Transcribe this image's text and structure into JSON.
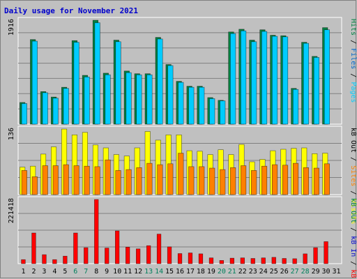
{
  "chart_data": {
    "type": "bar",
    "title": "Daily usage for November 2021",
    "categories": [
      "1",
      "2",
      "3",
      "4",
      "5",
      "6",
      "7",
      "8",
      "9",
      "10",
      "11",
      "12",
      "13",
      "14",
      "15",
      "16",
      "17",
      "18",
      "19",
      "20",
      "21",
      "22",
      "23",
      "24",
      "25",
      "26",
      "27",
      "28",
      "29",
      "30",
      "31"
    ],
    "weekend_days": [
      "6",
      "7",
      "13",
      "14",
      "20",
      "21",
      "27",
      "28"
    ],
    "panels": [
      {
        "id": "top",
        "max_label": "1916",
        "ymax": 1916,
        "legend": [
          {
            "text": "Pages",
            "color": "#00ccff"
          },
          {
            "text": " / ",
            "color": "#000000"
          },
          {
            "text": "Files",
            "color": "#0066cc"
          },
          {
            "text": " / ",
            "color": "#000000"
          },
          {
            "text": "Hits",
            "color": "#008040"
          }
        ],
        "series": [
          {
            "name": "Hits",
            "color": "#008040",
            "values": [
              400,
              1560,
              600,
              500,
              680,
              1540,
              900,
              1916,
              940,
              1550,
              980,
              930,
              930,
              1600,
              1100,
              790,
              700,
              700,
              490,
              440,
              1700,
              1750,
              1550,
              1740,
              1640,
              1630,
              660,
              1510,
              1250,
              1780,
              0
            ]
          },
          {
            "name": "Pages",
            "color": "#00ccff",
            "values": [
              380,
              1530,
              580,
              480,
              660,
              1510,
              870,
              1870,
              910,
              1520,
              950,
              910,
              910,
              1570,
              1080,
              770,
              680,
              680,
              470,
              430,
              1670,
              1720,
              1520,
              1710,
              1620,
              1610,
              640,
              1490,
              1230,
              1740,
              0
            ]
          }
        ]
      },
      {
        "id": "middle",
        "max_label": "136",
        "ymax": 136,
        "legend": [
          {
            "text": "Visits",
            "color": "#ffff00"
          },
          {
            "text": " / ",
            "color": "#000000"
          },
          {
            "text": "Sites",
            "color": "#ff8000"
          },
          {
            "text": " / ",
            "color": "#000000"
          },
          {
            "text": "kB Out",
            "color": "#000000"
          }
        ],
        "series": [
          {
            "name": "Visits",
            "color": "#ffff00",
            "values": [
              57,
              59,
              84,
              99,
              136,
              124,
              129,
              103,
              97,
              83,
              80,
              97,
              131,
              113,
              124,
              124,
              91,
              90,
              83,
              93,
              83,
              104,
              68,
              73,
              91,
              94,
              96,
              97,
              85,
              86,
              0
            ]
          },
          {
            "name": "Sites",
            "color": "#ff8000",
            "values": [
              50,
              37,
              60,
              60,
              62,
              60,
              59,
              58,
              72,
              50,
              52,
              56,
              65,
              62,
              64,
              86,
              58,
              58,
              55,
              52,
              56,
              60,
              50,
              59,
              62,
              61,
              65,
              56,
              55,
              64,
              0
            ]
          }
        ]
      },
      {
        "id": "bottom",
        "max_label": "221418",
        "ymax": 221418,
        "legend": [
          {
            "text": "kB F",
            "color": "#ff0000"
          },
          {
            "text": " / ",
            "color": "#000000"
          },
          {
            "text": "kB In",
            "color": "#0000cc"
          },
          {
            "text": " / ",
            "color": "#000000"
          },
          {
            "text": "kB Out",
            "color": "#008040"
          }
        ],
        "series": [
          {
            "name": "kB F",
            "color": "#ff0000",
            "values": [
              14000,
              106000,
              31000,
              14000,
              26000,
              106000,
              55000,
              221418,
              54000,
              113000,
              57000,
              51000,
              62000,
              102000,
              58000,
              35000,
              37000,
              34000,
              20000,
              11000,
              19000,
              20000,
              18000,
              20000,
              22000,
              18000,
              17000,
              34000,
              55000,
              76000,
              0
            ]
          }
        ]
      }
    ],
    "colors": {
      "background": "#c0c0c0",
      "frame": "#ffffff",
      "grid": "#808080",
      "weekday_tick": "#000000",
      "weekend_tick": "#00805c"
    }
  }
}
